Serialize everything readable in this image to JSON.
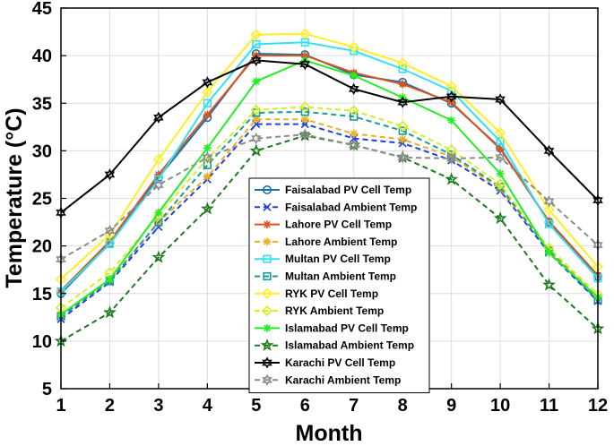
{
  "chart_data": {
    "type": "line",
    "title": "",
    "xlabel": "Month",
    "ylabel": "Temperature (°C)",
    "xlim": [
      1,
      12
    ],
    "ylim": [
      5,
      45
    ],
    "x": [
      1,
      2,
      3,
      4,
      5,
      6,
      7,
      8,
      9,
      10,
      11,
      12
    ],
    "xticks": [
      "1",
      "2",
      "3",
      "4",
      "5",
      "6",
      "7",
      "8",
      "9",
      "10",
      "11",
      "12"
    ],
    "yticks": [
      "5",
      "10",
      "15",
      "20",
      "25",
      "30",
      "35",
      "40",
      "45"
    ],
    "grid": true,
    "legend_position": "bottom-center",
    "series": [
      {
        "name": "Faisalabad PV Cell Temp",
        "color": "#1f6fad",
        "dash": "solid",
        "marker": "circle",
        "values": [
          15.0,
          20.3,
          27.2,
          33.5,
          40.2,
          40.1,
          38.0,
          37.2,
          35.0,
          30.3,
          22.5,
          16.8
        ]
      },
      {
        "name": "Faisalabad Ambient Temp",
        "color": "#1f3fe0",
        "dash": "dashed",
        "marker": "x",
        "values": [
          12.3,
          16.2,
          22.0,
          27.0,
          32.8,
          32.8,
          31.3,
          30.8,
          29.0,
          25.8,
          19.3,
          14.2
        ]
      },
      {
        "name": "Lahore PV Cell Temp",
        "color": "#d9541e",
        "dash": "solid",
        "marker": "asterisk",
        "values": [
          15.3,
          20.5,
          27.5,
          33.8,
          40.0,
          40.0,
          38.2,
          37.0,
          35.1,
          30.2,
          22.6,
          16.9
        ]
      },
      {
        "name": "Lahore Ambient Temp",
        "color": "#edb120",
        "dash": "dashed",
        "marker": "asterisk",
        "values": [
          12.8,
          16.4,
          22.5,
          27.3,
          33.3,
          33.3,
          31.8,
          31.2,
          29.4,
          26.0,
          19.6,
          14.6
        ]
      },
      {
        "name": "Multan PV Cell Temp",
        "color": "#33e0f0",
        "dash": "solid",
        "marker": "square",
        "values": [
          15.2,
          20.2,
          27.0,
          35.0,
          41.2,
          41.4,
          40.5,
          38.6,
          36.3,
          31.0,
          22.3,
          16.6
        ]
      },
      {
        "name": "Multan Ambient Temp",
        "color": "#1a9a9a",
        "dash": "dashed",
        "marker": "square",
        "values": [
          12.6,
          16.3,
          22.5,
          28.5,
          34.0,
          34.1,
          33.6,
          32.1,
          29.6,
          26.2,
          19.5,
          14.3
        ]
      },
      {
        "name": "RYK PV Cell Temp",
        "color": "#ffee22",
        "dash": "solid",
        "marker": "diamond",
        "values": [
          16.5,
          21.2,
          29.1,
          36.2,
          42.2,
          42.3,
          40.9,
          39.2,
          36.8,
          31.9,
          23.8,
          17.8
        ]
      },
      {
        "name": "RYK Ambient Temp",
        "color": "#d4ee22",
        "dash": "dashed",
        "marker": "diamond",
        "values": [
          13.5,
          17.2,
          23.2,
          29.2,
          34.3,
          34.6,
          34.2,
          32.6,
          30.1,
          26.5,
          19.8,
          14.9
        ]
      },
      {
        "name": "Islamabad PV Cell Temp",
        "color": "#22ee22",
        "dash": "solid",
        "marker": "asterisk",
        "values": [
          12.8,
          16.5,
          23.5,
          30.3,
          37.3,
          39.5,
          37.9,
          35.6,
          33.2,
          27.6,
          19.3,
          14.6
        ]
      },
      {
        "name": "Islamabad Ambient Temp",
        "color": "#1e7a1e",
        "dash": "dashed",
        "marker": "pentagram",
        "values": [
          10.0,
          13.0,
          18.8,
          23.9,
          30.0,
          31.6,
          30.6,
          29.3,
          27.0,
          22.9,
          15.9,
          11.3
        ]
      },
      {
        "name": "Karachi PV Cell Temp",
        "color": "#000000",
        "dash": "solid",
        "marker": "hexagram",
        "values": [
          23.5,
          27.5,
          33.5,
          37.2,
          39.5,
          39.1,
          36.5,
          35.1,
          35.7,
          35.4,
          30.0,
          24.8
        ]
      },
      {
        "name": "Karachi Ambient Temp",
        "color": "#8c8c8c",
        "dash": "dashed",
        "marker": "hexagram",
        "values": [
          18.6,
          21.6,
          26.4,
          29.3,
          31.3,
          31.7,
          30.6,
          29.3,
          29.2,
          29.3,
          24.7,
          20.1
        ]
      }
    ]
  }
}
